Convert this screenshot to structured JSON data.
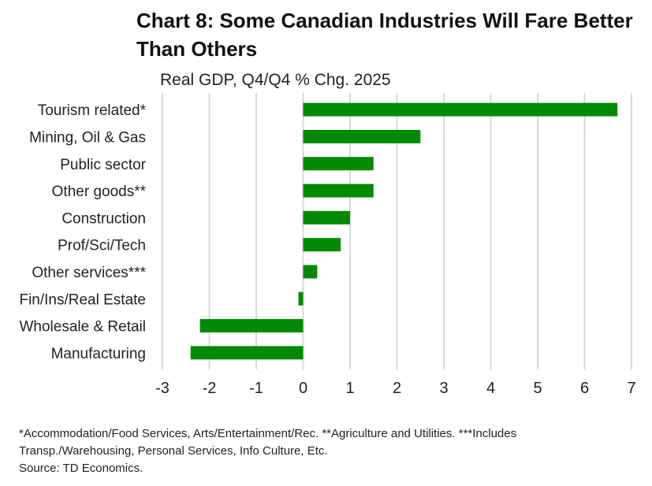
{
  "chart_data": {
    "type": "bar",
    "orientation": "horizontal",
    "title": "Chart 8: Some Canadian Industries Will Fare Better Than Others",
    "subtitle": "Real GDP, Q4/Q4 % Chg. 2025",
    "categories": [
      "Tourism related*",
      "Mining, Oil & Gas",
      "Public sector",
      "Other goods**",
      "Construction",
      "Prof/Sci/Tech",
      "Other services***",
      "Fin/Ins/Real Estate",
      "Wholesale & Retail",
      "Manufacturing"
    ],
    "values": [
      6.7,
      2.5,
      1.5,
      1.5,
      1.0,
      0.8,
      0.3,
      -0.1,
      -2.2,
      -2.4
    ],
    "xlim": [
      -3,
      7
    ],
    "xticks": [
      "-3",
      "-2",
      "-1",
      "0",
      "1",
      "2",
      "3",
      "4",
      "5",
      "6",
      "7"
    ],
    "grid": true,
    "bar_color": "#008a00",
    "grid_color": "#d9d9d9"
  },
  "footnotes": {
    "line1": "*Accommodation/Food Services, Arts/Entertainment/Rec. **Agriculture and Utilities. ***Includes",
    "line2": "Transp./Warehousing, Personal Services, Info Culture, Etc.",
    "source": "Source: TD Economics."
  }
}
